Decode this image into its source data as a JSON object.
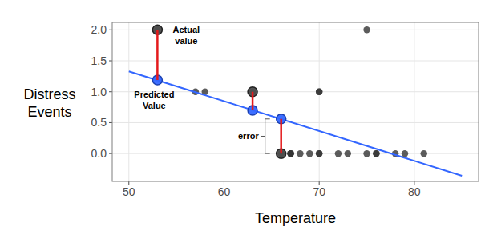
{
  "chart_data": {
    "type": "scatter",
    "xlabel": "Temperature",
    "ylabel": "Distress Events",
    "xlim": [
      48.25,
      86.75
    ],
    "ylim": [
      -0.45,
      2.12
    ],
    "xticks": [
      50,
      60,
      70,
      80
    ],
    "yticks": [
      {
        "value": 0,
        "label": "0.0"
      },
      {
        "value": 0.5,
        "label": "0.5"
      },
      {
        "value": 1,
        "label": "1.0"
      },
      {
        "value": 1.5,
        "label": "1.5"
      },
      {
        "value": 2,
        "label": "2.0"
      }
    ],
    "grid": true,
    "series": [
      {
        "type": "scatter",
        "color": "#333333",
        "marker": "circle",
        "x": [
          53,
          57,
          58,
          63,
          66,
          67,
          67,
          67,
          68,
          69,
          70,
          70,
          70,
          70,
          72,
          73,
          75,
          75,
          76,
          76,
          78,
          79,
          81
        ],
        "values": [
          2,
          1,
          1,
          1,
          0,
          0,
          0,
          0,
          0,
          0,
          1,
          1,
          0,
          0,
          0,
          0,
          2,
          0,
          0,
          0,
          0,
          0,
          0
        ]
      },
      {
        "type": "line",
        "color": "#3366ff",
        "x": [
          50,
          85
        ],
        "values": [
          1.33,
          -0.36
        ]
      },
      {
        "type": "scatter",
        "color": "#3366ff",
        "marker": "large_circle",
        "x": [
          53,
          63,
          66
        ],
        "values": [
          1.19,
          0.7,
          0.56
        ]
      },
      {
        "type": "scatter",
        "color": "#4d4d4d",
        "marker": "large_circle",
        "x": [
          53,
          63,
          66
        ],
        "values": [
          2,
          1,
          0
        ]
      }
    ],
    "annotations": [
      "Actual value",
      "Predicted Value",
      "error"
    ]
  }
}
